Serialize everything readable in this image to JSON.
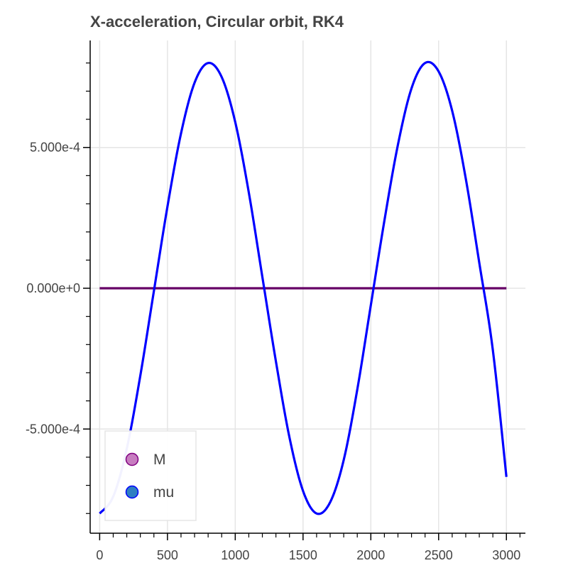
{
  "title": "X-acceleration, Circular orbit, RK4",
  "colors": {
    "grid": "#e5e5e5",
    "axis": "#000000",
    "text": "#444444",
    "legend_border": "#e5e5e5",
    "legend_bg": "#ffffff"
  },
  "chart_data": {
    "type": "line",
    "title": "X-acceleration, Circular orbit, RK4",
    "xlabel": "",
    "ylabel": "",
    "xlim": [
      -70,
      3140
    ],
    "ylim": [
      -0.00087,
      0.00088
    ],
    "x_ticks": [
      0,
      500,
      1000,
      1500,
      2000,
      2500,
      3000
    ],
    "x_tick_labels": [
      "0",
      "500",
      "1000",
      "1500",
      "2000",
      "2500",
      "3000"
    ],
    "y_ticks": [
      -0.0005,
      0,
      0.0005
    ],
    "y_tick_labels": [
      "-5.000e-4",
      "0.000e+0",
      "5.000e-4"
    ],
    "grid": true,
    "legend_position": "bottom-left",
    "series": [
      {
        "name": "M",
        "color": "#660066",
        "marker_color": "#c77dc0",
        "marker_border": "#800080",
        "x": [
          0,
          3000
        ],
        "y": [
          0,
          0
        ]
      },
      {
        "name": "mu",
        "color": "#0000ff",
        "marker_color": "#2f7fc1",
        "marker_border": "#0000ff",
        "x": [
          0,
          100,
          200,
          300,
          400,
          500,
          600,
          700,
          800,
          900,
          1000,
          1100,
          1200,
          1300,
          1400,
          1500,
          1600,
          1700,
          1800,
          1900,
          2000,
          2100,
          2200,
          2300,
          2400,
          2500,
          2600,
          2700,
          2800,
          2900,
          3000
        ],
        "y": [
          -0.0008,
          -0.00074,
          -0.00057,
          -0.00031,
          -1e-05,
          0.00029,
          0.00055,
          0.00073,
          0.0008,
          0.00075,
          0.00059,
          0.00034,
          4e-05,
          -0.00026,
          -0.00053,
          -0.00072,
          -0.0008,
          -0.00076,
          -0.00061,
          -0.00036,
          -6e-05,
          0.00024,
          0.00051,
          0.00071,
          0.0008,
          0.00077,
          0.00063,
          0.00039,
          9e-05,
          -0.00022,
          -0.00067
        ]
      }
    ]
  }
}
